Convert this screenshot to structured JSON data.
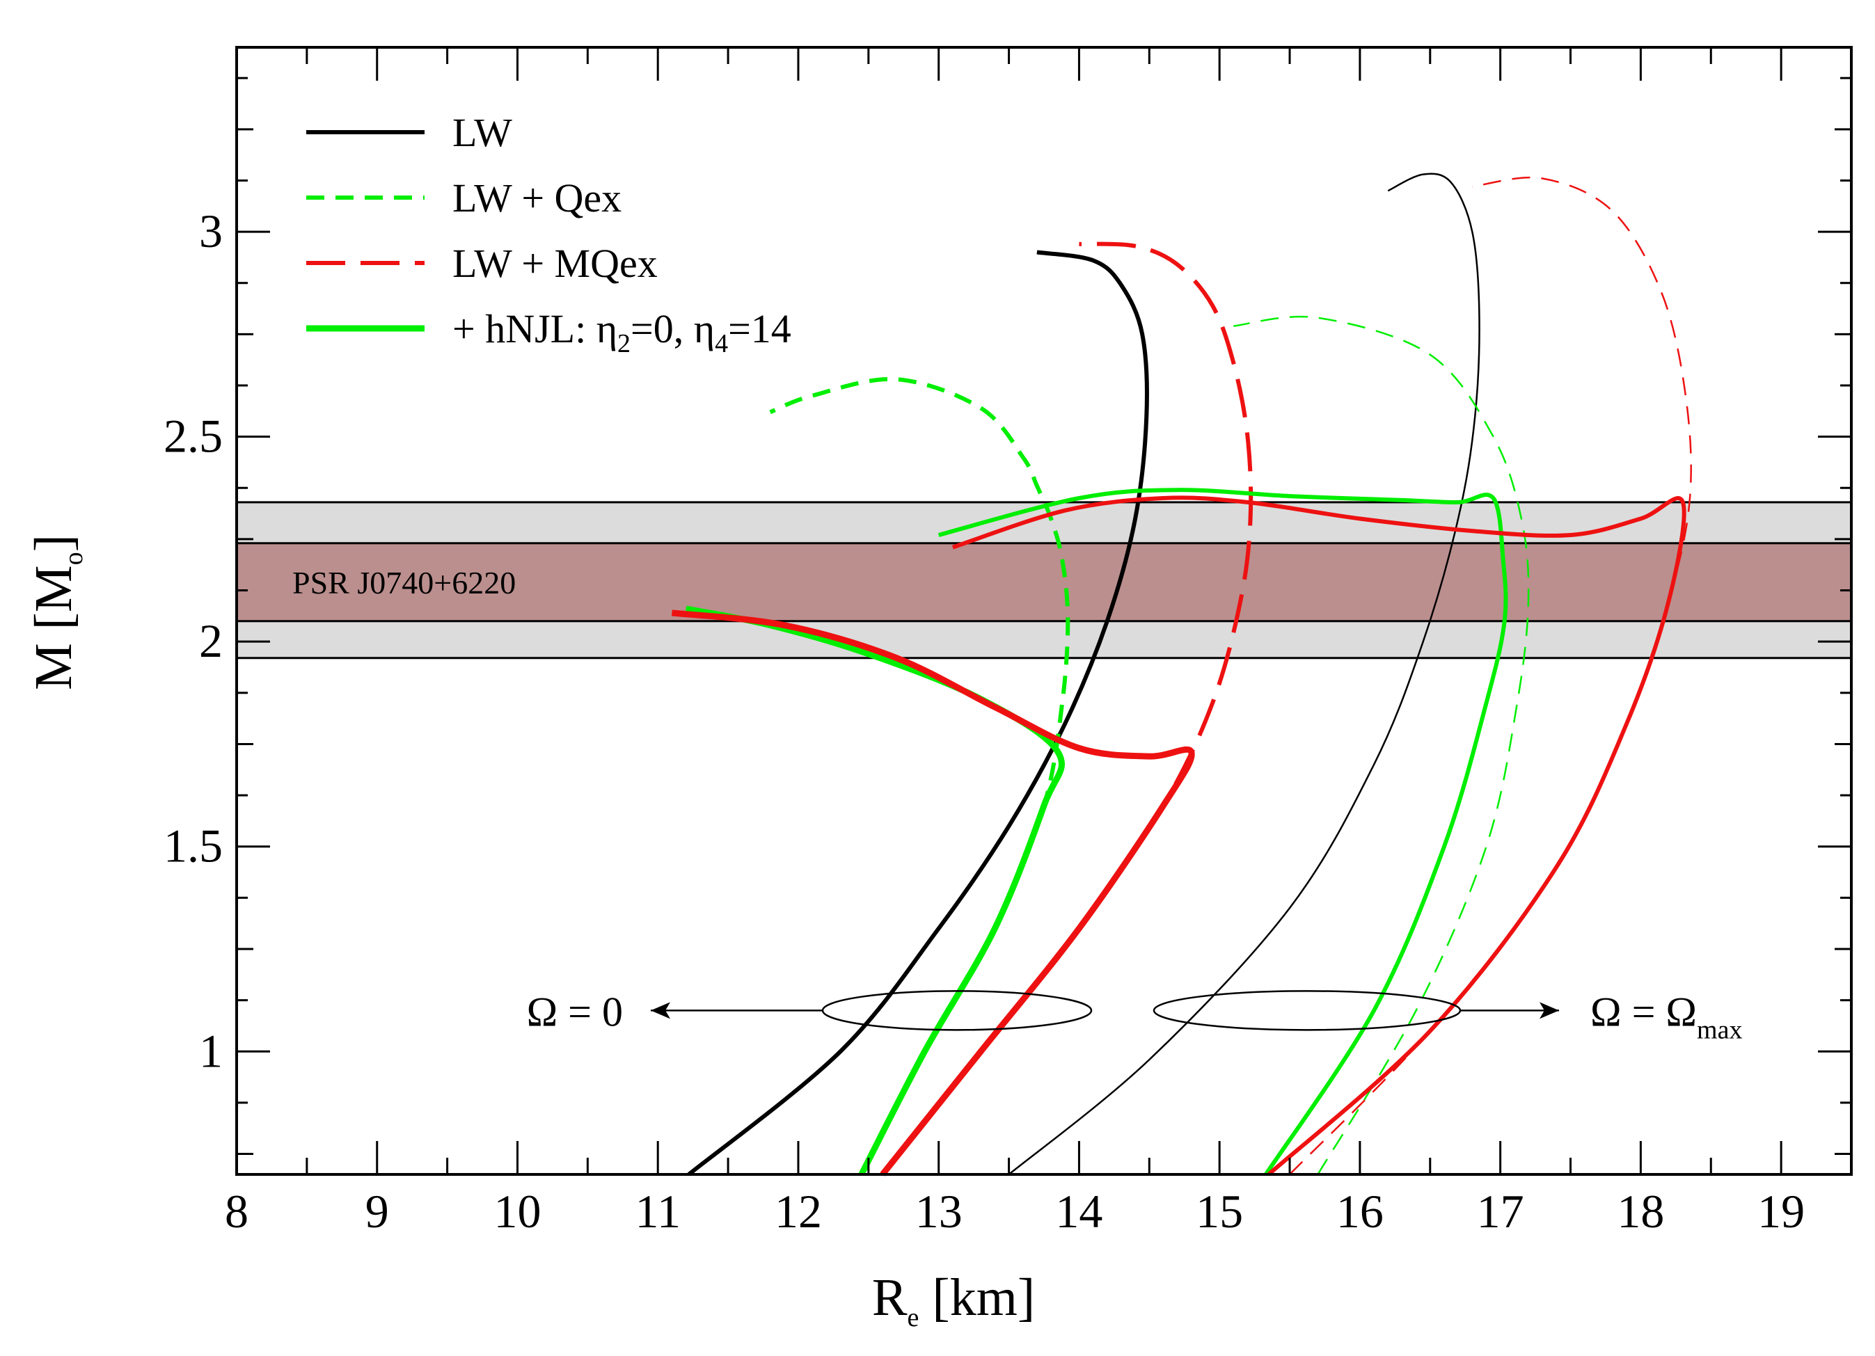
{
  "chart_data": {
    "type": "line",
    "xlabel": {
      "main": "R",
      "sub": "e",
      "unit": " [km]"
    },
    "ylabel": {
      "main": "M [M",
      "sub": "o",
      "close": "]"
    },
    "xlim": [
      8,
      19.5
    ],
    "ylim": [
      0.7,
      3.45
    ],
    "xticks": [
      8,
      9,
      10,
      11,
      12,
      13,
      14,
      15,
      16,
      17,
      18,
      19
    ],
    "yticks": [
      1,
      1.5,
      2,
      2.5,
      3
    ],
    "ytick_labels": [
      "1",
      "1.5",
      "2",
      "2.5",
      "3"
    ],
    "colors": {
      "black": "#000000",
      "green": "#00ee00",
      "red": "#ee1111",
      "band_outer": "#dcdcdc",
      "band_inner": "#bb8f8e"
    },
    "bands": [
      {
        "label": "PSR J0740+6220",
        "outer": [
          1.96,
          2.34
        ],
        "inner": [
          2.05,
          2.24
        ]
      }
    ],
    "legend": {
      "position": "top-left",
      "entries": [
        {
          "id": "lw",
          "label": "LW",
          "color": "black",
          "style": "solid",
          "width": "thick"
        },
        {
          "id": "qex",
          "label": "LW + Qex",
          "color": "green",
          "style": "short-dash",
          "width": "thick"
        },
        {
          "id": "mqex",
          "label": "LW + MQex",
          "color": "red",
          "style": "long-dash",
          "width": "thick"
        },
        {
          "id": "hnjl",
          "label_parts": {
            "prefix": "+ hNJL: η",
            "sub1": "2",
            "mid": "=0, η",
            "sub2": "4",
            "suffix": "=14"
          },
          "color": "green",
          "style": "solid",
          "width": "xthick"
        }
      ]
    },
    "annotations": {
      "omega0": {
        "text": "Ω = 0"
      },
      "omegamax": {
        "text": "Ω = Ω",
        "sub": "max"
      }
    },
    "series": [
      {
        "name": "LW (Ω = 0)",
        "color": "black",
        "style": "solid",
        "width": "thick",
        "x": [
          11.22,
          12.3,
          13.0,
          13.5,
          13.9,
          14.2,
          14.4,
          14.48,
          14.45,
          14.3,
          14.1,
          13.7
        ],
        "y": [
          0.7,
          1.0,
          1.3,
          1.55,
          1.8,
          2.05,
          2.3,
          2.55,
          2.75,
          2.87,
          2.93,
          2.95
        ]
      },
      {
        "name": "LW + Qex (Ω = 0)",
        "color": "green",
        "style": "short-dash",
        "width": "thick",
        "x": [
          12.45,
          12.9,
          13.4,
          13.75,
          13.88,
          13.92,
          13.88,
          13.8,
          13.7,
          13.6,
          13.3,
          12.7,
          12.1,
          11.8
        ],
        "y": [
          0.7,
          1.0,
          1.3,
          1.6,
          1.85,
          2.05,
          2.2,
          2.3,
          2.38,
          2.45,
          2.57,
          2.64,
          2.6,
          2.56
        ]
      },
      {
        "name": "LW + MQex (Ω = 0)",
        "color": "red",
        "style": "long-dash",
        "width": "thick",
        "x": [
          12.6,
          13.3,
          14.0,
          14.6,
          14.95,
          15.15,
          15.22,
          15.2,
          15.1,
          14.95,
          14.7,
          14.4,
          14.0
        ],
        "y": [
          0.7,
          1.0,
          1.3,
          1.6,
          1.85,
          2.1,
          2.3,
          2.5,
          2.68,
          2.82,
          2.92,
          2.965,
          2.97
        ]
      },
      {
        "name": "LW + Qex + hNJL (Ω = 0)",
        "color": "green",
        "style": "solid",
        "width": "xthick",
        "x": [
          12.45,
          12.9,
          13.4,
          13.75,
          13.85,
          13.3,
          12.5,
          11.8,
          11.2
        ],
        "y": [
          0.7,
          1.0,
          1.3,
          1.6,
          1.73,
          1.86,
          1.97,
          2.04,
          2.08
        ]
      },
      {
        "name": "LW + MQex + hNJL (Ω = 0)",
        "color": "red",
        "style": "solid",
        "width": "xthick",
        "x": [
          12.6,
          13.3,
          14.0,
          14.6,
          14.8,
          14.5,
          14.0,
          13.4,
          12.7,
          11.9,
          11.1
        ],
        "y": [
          0.7,
          1.0,
          1.3,
          1.6,
          1.73,
          1.72,
          1.74,
          1.84,
          1.96,
          2.04,
          2.07
        ]
      },
      {
        "name": "LW (Ω = Ω_max)",
        "color": "black",
        "style": "solid",
        "width": "thin",
        "x": [
          13.5,
          14.5,
          15.5,
          16.1,
          16.45,
          16.7,
          16.82,
          16.85,
          16.8,
          16.65,
          16.45,
          16.2
        ],
        "y": [
          0.7,
          0.98,
          1.35,
          1.7,
          2.0,
          2.3,
          2.55,
          2.8,
          3.0,
          3.12,
          3.14,
          3.1
        ]
      },
      {
        "name": "LW + Qex (Ω = Ω_max)",
        "color": "green",
        "style": "short-dash",
        "width": "thin",
        "x": [
          15.7,
          16.4,
          16.9,
          17.12,
          17.2,
          17.15,
          16.95,
          16.5,
          15.7,
          15.1
        ],
        "y": [
          0.7,
          1.1,
          1.5,
          1.85,
          2.1,
          2.3,
          2.5,
          2.7,
          2.79,
          2.77
        ]
      },
      {
        "name": "LW + MQex (Ω = Ω_max)",
        "color": "red",
        "style": "short-dash",
        "width": "thin",
        "x": [
          15.5,
          16.5,
          17.4,
          17.9,
          18.2,
          18.35,
          18.32,
          18.15,
          17.8,
          17.3,
          16.8
        ],
        "y": [
          0.7,
          1.05,
          1.45,
          1.8,
          2.1,
          2.35,
          2.6,
          2.85,
          3.05,
          3.13,
          3.11
        ]
      },
      {
        "name": "LW + Qex + hNJL (Ω = Ω_max)",
        "color": "green",
        "style": "solid",
        "width": "thick",
        "x": [
          15.33,
          16.1,
          16.6,
          16.9,
          17.03,
          17.02,
          16.95,
          16.7,
          16.3,
          15.5,
          14.7,
          14.0,
          13.0
        ],
        "y": [
          0.7,
          1.1,
          1.5,
          1.85,
          2.05,
          2.2,
          2.35,
          2.34,
          2.345,
          2.355,
          2.37,
          2.35,
          2.26
        ]
      },
      {
        "name": "LW + MQex + hNJL (Ω = Ω_max)",
        "color": "red",
        "style": "solid",
        "width": "thick",
        "x": [
          15.35,
          16.5,
          17.4,
          17.9,
          18.2,
          18.3,
          18.0,
          17.5,
          16.8,
          16.0,
          15.2,
          14.6,
          13.9,
          13.1
        ],
        "y": [
          0.7,
          1.05,
          1.45,
          1.8,
          2.1,
          2.34,
          2.3,
          2.26,
          2.27,
          2.3,
          2.34,
          2.35,
          2.32,
          2.23
        ]
      }
    ]
  }
}
